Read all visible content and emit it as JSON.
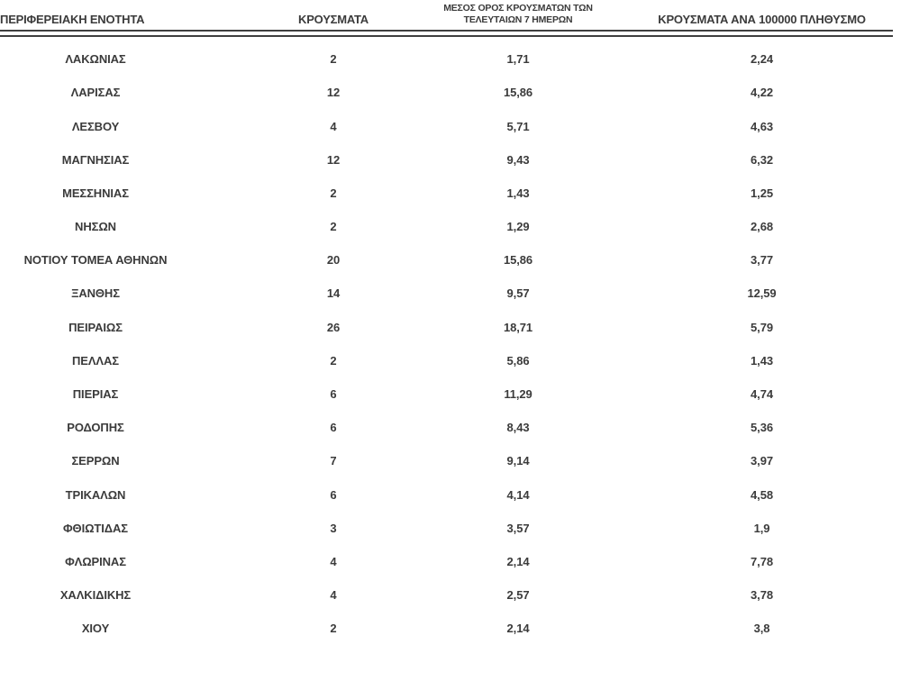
{
  "header": {
    "col1": "ΠΕΡΙΦΕΡΕΙΑΚΗ ΕΝΟΤΗΤΑ",
    "col2": "ΚΡΟΥΣΜΑΤΑ",
    "col3_line1": "ΜΕΣΟΣ ΟΡΟΣ ΚΡΟΥΣΜΑΤΩΝ ΤΩΝ",
    "col3_line2": "ΤΕΛΕΥΤΑΙΩΝ 7 ΗΜΕΡΩΝ",
    "col4": "ΚΡΟΥΣΜΑΤΑ ΑΝΑ 100000 ΠΛΗΘΥΣΜΟ"
  },
  "chart_data": {
    "type": "table",
    "columns": [
      "ΠΕΡΙΦΕΡΕΙΑΚΗ ΕΝΟΤΗΤΑ",
      "ΚΡΟΥΣΜΑΤΑ",
      "ΜΕΣΟΣ ΟΡΟΣ ΚΡΟΥΣΜΑΤΩΝ ΤΩΝ ΤΕΛΕΥΤΑΙΩΝ 7 ΗΜΕΡΩΝ",
      "ΚΡΟΥΣΜΑΤΑ ΑΝΑ 100000 ΠΛΗΘΥΣΜΟ"
    ],
    "rows": [
      [
        "ΛΑΚΩΝΙΑΣ",
        "2",
        "1,71",
        "2,24"
      ],
      [
        "ΛΑΡΙΣΑΣ",
        "12",
        "15,86",
        "4,22"
      ],
      [
        "ΛΕΣΒΟΥ",
        "4",
        "5,71",
        "4,63"
      ],
      [
        "ΜΑΓΝΗΣΙΑΣ",
        "12",
        "9,43",
        "6,32"
      ],
      [
        "ΜΕΣΣΗΝΙΑΣ",
        "2",
        "1,43",
        "1,25"
      ],
      [
        "ΝΗΣΩΝ",
        "2",
        "1,29",
        "2,68"
      ],
      [
        "ΝΟΤΙΟΥ ΤΟΜΕΑ ΑΘΗΝΩΝ",
        "20",
        "15,86",
        "3,77"
      ],
      [
        "ΞΑΝΘΗΣ",
        "14",
        "9,57",
        "12,59"
      ],
      [
        "ΠΕΙΡΑΙΩΣ",
        "26",
        "18,71",
        "5,79"
      ],
      [
        "ΠΕΛΛΑΣ",
        "2",
        "5,86",
        "1,43"
      ],
      [
        "ΠΙΕΡΙΑΣ",
        "6",
        "11,29",
        "4,74"
      ],
      [
        "ΡΟΔΟΠΗΣ",
        "6",
        "8,43",
        "5,36"
      ],
      [
        "ΣΕΡΡΩΝ",
        "7",
        "9,14",
        "3,97"
      ],
      [
        "ΤΡΙΚΑΛΩΝ",
        "6",
        "4,14",
        "4,58"
      ],
      [
        "ΦΘΙΩΤΙΔΑΣ",
        "3",
        "3,57",
        "1,9"
      ],
      [
        "ΦΛΩΡΙΝΑΣ",
        "4",
        "2,14",
        "7,78"
      ],
      [
        "ΧΑΛΚΙΔΙΚΗΣ",
        "4",
        "2,57",
        "3,78"
      ],
      [
        "ΧΙΟΥ",
        "2",
        "2,14",
        "3,8"
      ]
    ]
  },
  "colors": {
    "text": "#3b3b3b",
    "rule": "#3f3f3f",
    "background": "#ffffff"
  }
}
